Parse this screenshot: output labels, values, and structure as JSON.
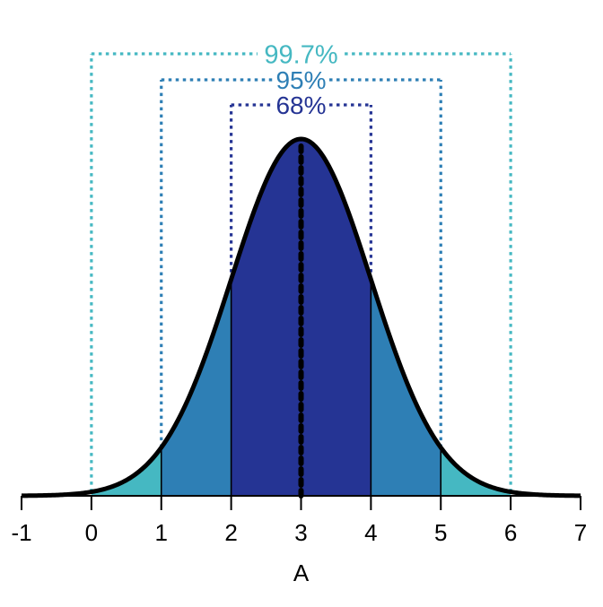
{
  "chart_data": {
    "type": "area",
    "title": "",
    "xlabel": "A",
    "ylabel": "",
    "distribution": "normal",
    "mean": 3,
    "sd": 1,
    "xlim": [
      -1,
      7
    ],
    "x_ticks": [
      -1,
      0,
      1,
      2,
      3,
      4,
      5,
      6,
      7
    ],
    "x_tick_labels": [
      "-1",
      "0",
      "1",
      "2",
      "3",
      "4",
      "5",
      "6",
      "7"
    ],
    "grid": false,
    "mean_line": {
      "x": 3,
      "style": "dotted"
    },
    "intervals": [
      {
        "label": "99.7%",
        "lower": 0,
        "upper": 6,
        "color": "#45B8C2"
      },
      {
        "label": "95%",
        "lower": 1,
        "upper": 5,
        "color": "#2E7FB5"
      },
      {
        "label": "68%",
        "lower": 2,
        "upper": 4,
        "color": "#253494"
      }
    ],
    "boundary_lines": [
      1,
      2,
      4,
      5
    ],
    "colors": {
      "curve": "#000000",
      "axis": "#000000",
      "text": "#000000"
    }
  }
}
